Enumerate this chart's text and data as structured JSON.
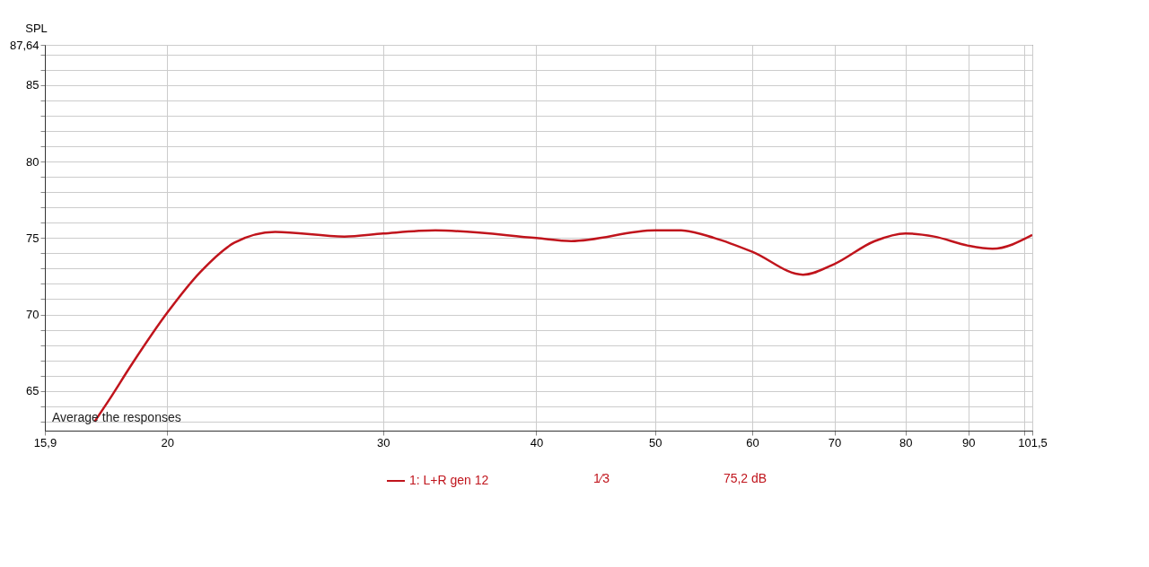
{
  "chart_data": {
    "type": "line",
    "ylabel": "SPL",
    "series": [
      {
        "name": "1: L+R gen 12",
        "color": "#c0141c",
        "x": [
          17.46,
          17.9,
          18.74,
          20,
          21.3,
          22.7,
          24.5,
          27.9,
          30,
          33.1,
          40,
          42.7,
          50,
          52.5,
          55.9,
          60,
          66,
          70,
          75.5,
          80,
          84.4,
          90,
          94.2,
          101.5
        ],
        "values": [
          63.0,
          64.3,
          66.8,
          70.1,
          72.8,
          74.7,
          75.4,
          75.1,
          75.3,
          75.5,
          75.0,
          74.8,
          75.5,
          75.5,
          75.0,
          74.1,
          72.6,
          73.3,
          74.8,
          75.3,
          75.1,
          74.5,
          74.3,
          75.2
        ]
      }
    ],
    "log": "x",
    "xlim": [
      15.9,
      101.5
    ],
    "ylim": [
      62.4,
      87.64
    ],
    "xticks": [
      {
        "value": 15.9,
        "label": "15,9"
      },
      20,
      30,
      40,
      50,
      60,
      70,
      80,
      90,
      {
        "value": 100,
        "label": null
      },
      {
        "value": 101.5,
        "label": "101,5"
      }
    ],
    "yticks": [
      {
        "value": 63,
        "label": null
      },
      {
        "value": 64,
        "label": null
      },
      65,
      {
        "value": 66,
        "label": null
      },
      {
        "value": 67,
        "label": null
      },
      {
        "value": 68,
        "label": null
      },
      {
        "value": 69,
        "label": null
      },
      70,
      {
        "value": 71,
        "label": null
      },
      {
        "value": 72,
        "label": null
      },
      {
        "value": 73,
        "label": null
      },
      {
        "value": 74,
        "label": null
      },
      75,
      {
        "value": 76,
        "label": null
      },
      {
        "value": 77,
        "label": null
      },
      {
        "value": 78,
        "label": null
      },
      {
        "value": 79,
        "label": null
      },
      80,
      {
        "value": 81,
        "label": null
      },
      {
        "value": 82,
        "label": null
      },
      {
        "value": 83,
        "label": null
      },
      {
        "value": 84,
        "label": null
      },
      85,
      {
        "value": 86,
        "label": null
      },
      {
        "value": 87,
        "label": null
      },
      {
        "value": 87.64,
        "label": "87,64"
      }
    ],
    "grid": true,
    "legend": "bottom",
    "line_style": "solid",
    "marker": "none",
    "annotations": [
      "Average the responses",
      "1⁄3",
      "75,2 dB"
    ]
  }
}
